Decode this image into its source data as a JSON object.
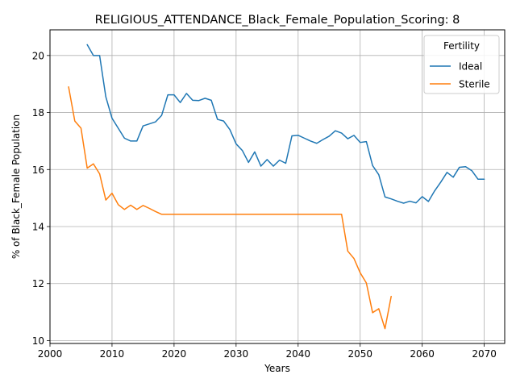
{
  "chart_data": {
    "type": "line",
    "title": "RELIGIOUS_ATTENDANCE_Black_Female_Population_Scoring: 8",
    "xlabel": "Years",
    "ylabel": "% of Black_Female Population",
    "xlim": [
      2000,
      2073.3
    ],
    "ylim": [
      9.9,
      20.9
    ],
    "xticks": [
      2000,
      2010,
      2020,
      2030,
      2040,
      2050,
      2060,
      2070
    ],
    "yticks": [
      10,
      12,
      14,
      16,
      18,
      20
    ],
    "grid": true,
    "legend": {
      "title": "Fertility",
      "placement": "top-right"
    },
    "series": [
      {
        "name": "Ideal",
        "color": "#1f77b4",
        "x": [
          2006,
          2007,
          2008,
          2009,
          2010,
          2011,
          2012,
          2013,
          2014,
          2015,
          2016,
          2017,
          2018,
          2019,
          2020,
          2021,
          2022,
          2023,
          2024,
          2025,
          2026,
          2027,
          2028,
          2029,
          2030,
          2031,
          2032,
          2033,
          2034,
          2035,
          2036,
          2037,
          2038,
          2039,
          2040,
          2041,
          2042,
          2043,
          2044,
          2045,
          2046,
          2047,
          2048,
          2049,
          2050,
          2051,
          2052,
          2053,
          2054,
          2055,
          2056,
          2057,
          2058,
          2059,
          2060,
          2061,
          2062,
          2063,
          2064,
          2065,
          2066,
          2067,
          2068,
          2069,
          2070
        ],
        "values": [
          20.38,
          20.0,
          20.0,
          18.55,
          17.8,
          17.45,
          17.1,
          17.0,
          17.0,
          17.53,
          17.6,
          17.67,
          17.9,
          18.62,
          18.62,
          18.35,
          18.67,
          18.43,
          18.42,
          18.5,
          18.43,
          17.76,
          17.7,
          17.4,
          16.9,
          16.67,
          16.25,
          16.62,
          16.12,
          16.35,
          16.12,
          16.33,
          16.22,
          17.18,
          17.2,
          17.1,
          17.0,
          16.92,
          17.05,
          17.17,
          17.36,
          17.28,
          17.08,
          17.2,
          16.95,
          16.98,
          16.14,
          15.82,
          15.04,
          14.97,
          14.89,
          14.82,
          14.89,
          14.83,
          15.05,
          14.88,
          15.25,
          15.56,
          15.9,
          15.73,
          16.08,
          16.1,
          15.96,
          15.66,
          15.66
        ]
      },
      {
        "name": "Sterile",
        "color": "#ff7f0e",
        "x": [
          2003,
          2004,
          2005,
          2006,
          2007,
          2008,
          2009,
          2010,
          2011,
          2012,
          2013,
          2014,
          2015,
          2016,
          2017,
          2018,
          2019,
          2020,
          2021,
          2022,
          2023,
          2024,
          2025,
          2026,
          2027,
          2028,
          2029,
          2030,
          2031,
          2032,
          2033,
          2034,
          2035,
          2036,
          2037,
          2038,
          2039,
          2040,
          2041,
          2042,
          2043,
          2044,
          2045,
          2046,
          2047,
          2048,
          2049,
          2050,
          2051,
          2052,
          2053,
          2054,
          2055
        ],
        "values": [
          18.9,
          17.7,
          17.45,
          16.05,
          16.2,
          15.85,
          14.93,
          15.17,
          14.77,
          14.6,
          14.75,
          14.6,
          14.74,
          14.64,
          14.53,
          14.43,
          14.43,
          14.43,
          14.43,
          14.43,
          14.43,
          14.43,
          14.43,
          14.43,
          14.43,
          14.43,
          14.43,
          14.43,
          14.43,
          14.43,
          14.43,
          14.43,
          14.43,
          14.43,
          14.43,
          14.43,
          14.43,
          14.43,
          14.43,
          14.43,
          14.43,
          14.43,
          14.43,
          14.43,
          14.43,
          13.14,
          12.88,
          12.38,
          12.02,
          10.98,
          11.12,
          10.42,
          11.55
        ]
      }
    ]
  }
}
